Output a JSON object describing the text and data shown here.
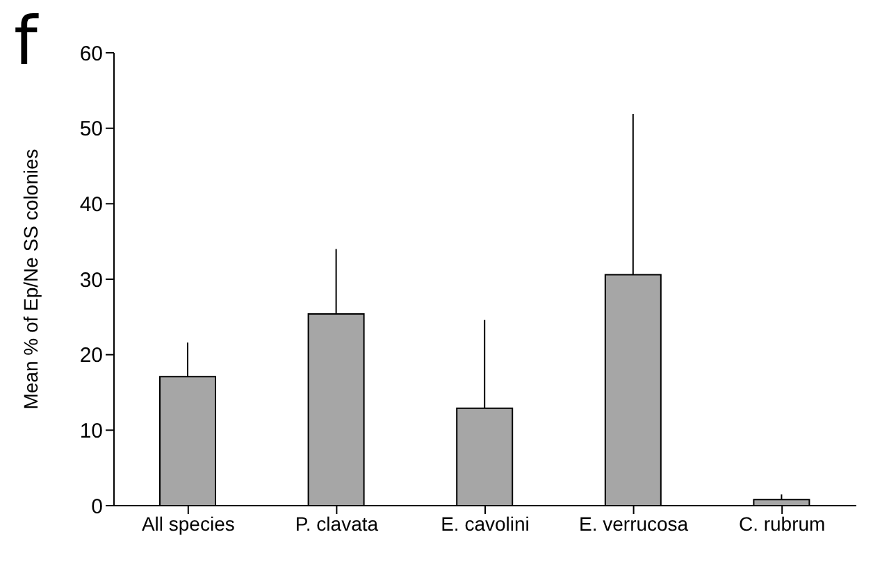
{
  "chart_data": {
    "type": "bar",
    "ylabel": "Mean % of Ep/Ne SS colonies",
    "annotations": [
      "f"
    ],
    "categories": [
      "All species",
      "P. clavata",
      "E. cavolini",
      "E. verrucosa",
      "C. rubrum"
    ],
    "values": [
      17.1,
      25.4,
      12.9,
      30.6,
      0.8
    ],
    "errors": [
      [
        17.1,
        21.6
      ],
      [
        25.4,
        34.0
      ],
      [
        12.9,
        24.6
      ],
      [
        30.6,
        51.9
      ],
      [
        0.8,
        1.5
      ]
    ],
    "color": "#a6a6a6",
    "ylim": [
      0,
      60
    ],
    "yticks": [
      0,
      10,
      20,
      30,
      40,
      50,
      60
    ],
    "grid": false,
    "legend": false
  }
}
